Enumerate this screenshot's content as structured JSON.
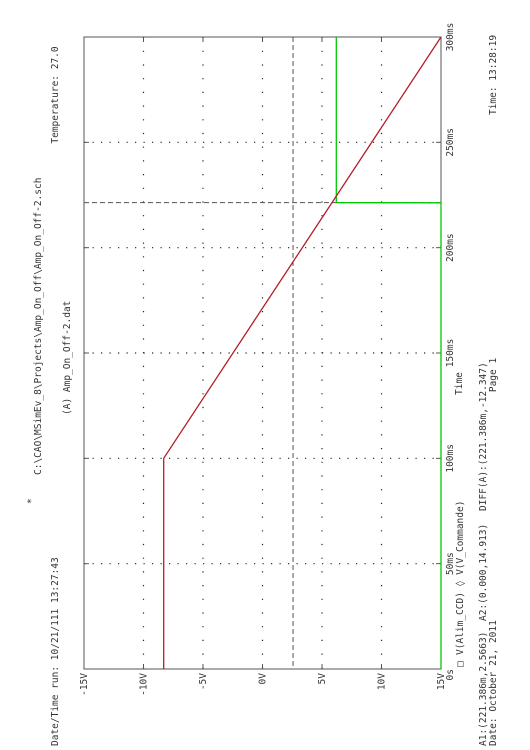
{
  "header": {
    "marker": "*",
    "schematic": "C:\\CAO\\MSimEv_8\\Projects\\Amp_On_Off\\Amp_On_Off-2.sch",
    "run": "Date/Time run: 10/21/111 13:27:43",
    "temperature": "Temperature: 27.0"
  },
  "plot_title": "(A) Amp_On_Off-2.dat",
  "xlabel": "Time",
  "legend": {
    "markers": [
      "□",
      "◊"
    ],
    "text": "V(Alim_CCD) ◊ V(V_Commande)"
  },
  "cursor": {
    "a1": "A1:(221.386m,2.5663)",
    "a2": "A2:(0.000,14.913)",
    "diff": "DIFF(A):(221.386m,-12.347)"
  },
  "footer": {
    "date": "Date: October 21, 2011",
    "page": "Page 1",
    "time": "Time: 13:28:19"
  },
  "colors": {
    "green_trace": "#00c800",
    "red_trace": "#b41e2a",
    "frame": "#555555"
  },
  "chart_data": {
    "type": "line",
    "title": "(A) Amp_On_Off-2.dat",
    "xlabel": "Time",
    "xlim": [
      0,
      0.3
    ],
    "ylim": [
      -15,
      15
    ],
    "xticks": [
      {
        "v": 0,
        "label": "0s"
      },
      {
        "v": 0.05,
        "label": "50ms"
      },
      {
        "v": 0.1,
        "label": "100ms"
      },
      {
        "v": 0.15,
        "label": "150ms"
      },
      {
        "v": 0.2,
        "label": "200ms"
      },
      {
        "v": 0.25,
        "label": "250ms"
      },
      {
        "v": 0.3,
        "label": "300ms"
      }
    ],
    "yticks": [
      {
        "v": 15,
        "label": "15V"
      },
      {
        "v": 10,
        "label": "10V"
      },
      {
        "v": 5,
        "label": "5V"
      },
      {
        "v": 0,
        "label": "0V"
      },
      {
        "v": -5,
        "label": "-5V"
      },
      {
        "v": -10,
        "label": "-10V"
      },
      {
        "v": -15,
        "label": "-15V"
      }
    ],
    "cursors": {
      "x": 0.221386,
      "y": 2.5663
    },
    "series": [
      {
        "name": "V(Alim_CCD)",
        "color": "#00c800",
        "x": [
          0,
          0.2213,
          0.2214,
          0.3
        ],
        "y": [
          15,
          15,
          6.2,
          6.2
        ]
      },
      {
        "name": "V(V_Commande)",
        "color": "#b41e2a",
        "x": [
          0,
          0.1,
          0.3
        ],
        "y": [
          -8.3,
          -8.3,
          15.5
        ]
      }
    ]
  }
}
